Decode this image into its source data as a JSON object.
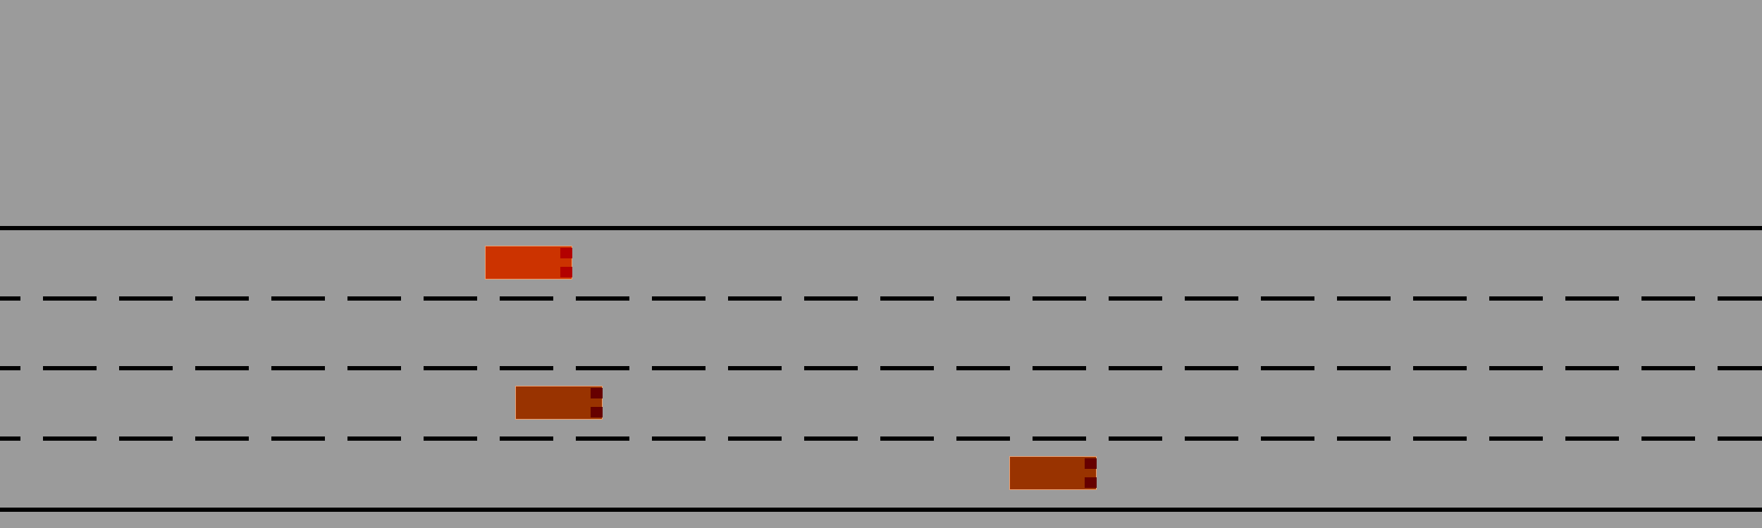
{
  "colors": {
    "background": "#9b9b9b",
    "road_line": "#000000",
    "ego_body": "#cc3300",
    "ego_light": "#b30000",
    "other_body": "#993300",
    "other_light": "#660000"
  },
  "road": {
    "lane_count": 4,
    "boundary_style": "solid",
    "divider_style": "dashed"
  },
  "vehicles": [
    {
      "role": "ego",
      "lane": 1,
      "heading": "right"
    },
    {
      "role": "other",
      "lane": 3,
      "heading": "right"
    },
    {
      "role": "other",
      "lane": 4,
      "heading": "right"
    }
  ]
}
